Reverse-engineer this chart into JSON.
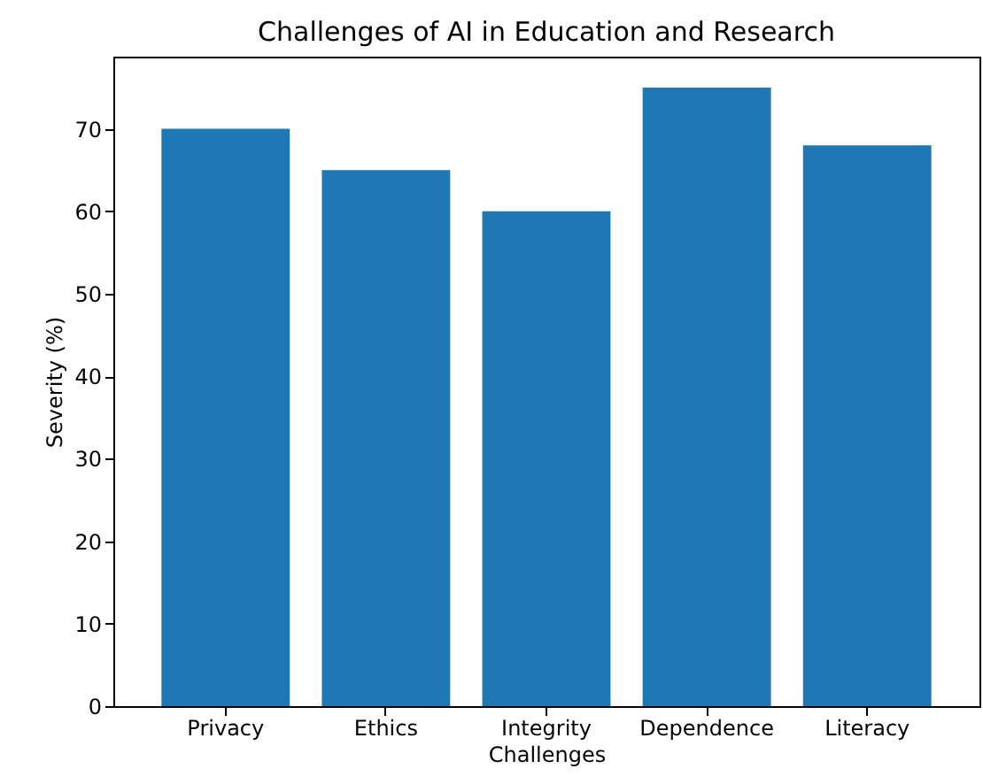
{
  "chart_data": {
    "type": "bar",
    "title": "Challenges of AI in Education and Research",
    "xlabel": "Challenges",
    "ylabel": "Severity (%)",
    "categories": [
      "Privacy",
      "Ethics",
      "Integrity",
      "Dependence",
      "Literacy"
    ],
    "series": [
      {
        "color": "#1f77b4",
        "values": [
          70,
          65,
          60,
          75,
          68
        ]
      }
    ],
    "ylim": [
      0,
      78.75
    ],
    "yticks": [
      0,
      10,
      20,
      30,
      40,
      50,
      60,
      70
    ],
    "grid": false
  }
}
